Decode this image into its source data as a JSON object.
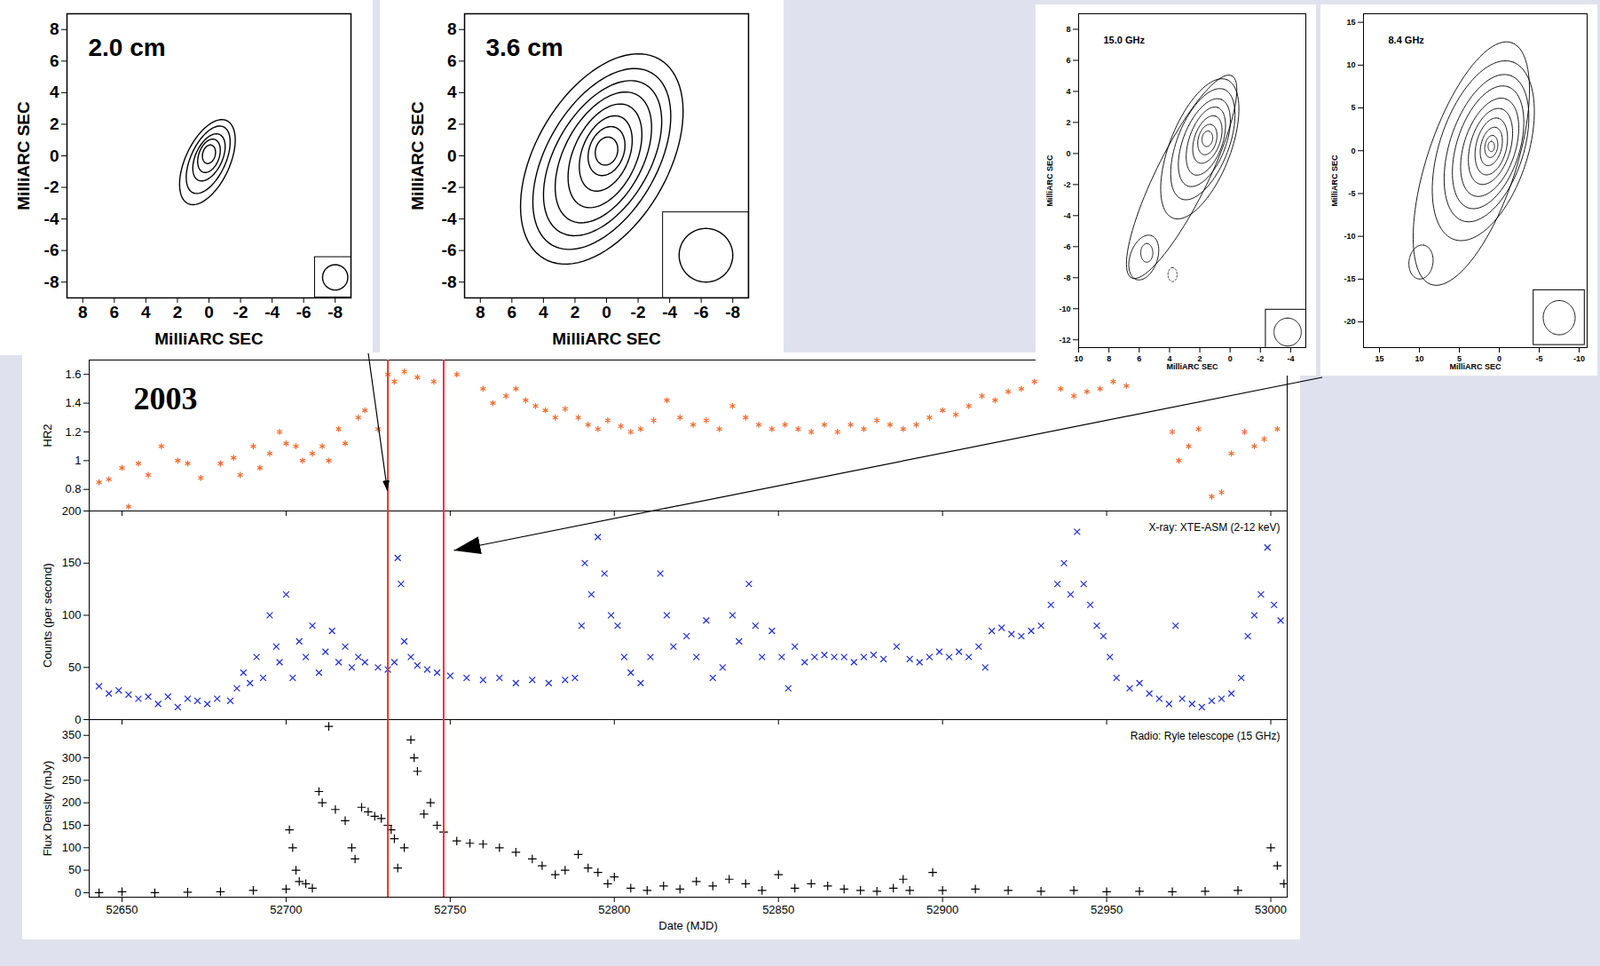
{
  "chart_data": [
    {
      "type": "contour",
      "title": "2.0 cm",
      "xlabel": "MilliARC SEC",
      "ylabel": "MilliARC SEC",
      "color": "#000000",
      "xlim": [
        9,
        -9
      ],
      "ylim": [
        -9,
        9
      ],
      "xticks": [
        8,
        6,
        4,
        2,
        0,
        -2,
        -4,
        -6,
        -8
      ],
      "yticks": [
        -8,
        -6,
        -4,
        -2,
        0,
        2,
        4,
        6,
        8
      ],
      "contours": [
        {
          "cx": 0.1,
          "cy": -0.4,
          "a": 2.9,
          "b": 1.4,
          "pa": -25
        },
        {
          "cx": 0.05,
          "cy": -0.25,
          "a": 2.3,
          "b": 1.1,
          "pa": -25
        },
        {
          "cx": 0,
          "cy": -0.1,
          "a": 1.6,
          "b": 0.85,
          "pa": -25
        },
        {
          "cx": 0,
          "cy": 0,
          "a": 1.1,
          "b": 0.65,
          "pa": -20
        },
        {
          "cx": 0,
          "cy": 0.1,
          "a": 0.6,
          "b": 0.4,
          "pa": -15
        }
      ],
      "beam": {
        "x": -8,
        "y": -7.7,
        "r": 0.8
      }
    },
    {
      "type": "contour",
      "title": "3.6 cm",
      "xlabel": "MilliARC SEC",
      "ylabel": "MilliARC SEC",
      "color": "#000000",
      "xlim": [
        9,
        -9
      ],
      "ylim": [
        -9,
        9
      ],
      "xticks": [
        8,
        6,
        4,
        2,
        0,
        -2,
        -4,
        -6,
        -8
      ],
      "yticks": [
        -8,
        -6,
        -4,
        -2,
        0,
        2,
        4,
        6,
        8
      ],
      "contours": [
        {
          "cx": 0.3,
          "cy": -0.2,
          "a": 7.3,
          "b": 4.2,
          "pa": -30
        },
        {
          "cx": 0.3,
          "cy": -0.2,
          "a": 6.3,
          "b": 3.5,
          "pa": -30
        },
        {
          "cx": 0.25,
          "cy": -0.15,
          "a": 5.4,
          "b": 3.0,
          "pa": -30
        },
        {
          "cx": 0.2,
          "cy": -0.1,
          "a": 4.5,
          "b": 2.5,
          "pa": -28
        },
        {
          "cx": 0.1,
          "cy": 0,
          "a": 3.5,
          "b": 2.0,
          "pa": -25
        },
        {
          "cx": 0.05,
          "cy": 0.15,
          "a": 2.5,
          "b": 1.5,
          "pa": -22
        },
        {
          "cx": 0,
          "cy": 0.3,
          "a": 1.6,
          "b": 1.1,
          "pa": -20
        },
        {
          "cx": 0,
          "cy": 0.3,
          "a": 0.9,
          "b": 0.7,
          "pa": -15
        }
      ],
      "beam": {
        "x": -6.3,
        "y": -6.3,
        "r": 1.7
      }
    },
    {
      "type": "contour",
      "title": "15.0 GHz",
      "xlabel": "MilliARC SEC",
      "ylabel": "MilliARC SEC",
      "color": "#000000",
      "xlim": [
        10,
        -5
      ],
      "ylim": [
        -12.5,
        9
      ],
      "xticks": [
        10,
        8,
        6,
        4,
        2,
        0,
        -2,
        -4
      ],
      "yticks": [
        -12,
        -10,
        -8,
        -6,
        -4,
        -2,
        0,
        2,
        4,
        6,
        8
      ],
      "contours": [
        {
          "cx": 3.2,
          "cy": -1.5,
          "a": 7.3,
          "b": 1.7,
          "pa": -27
        },
        {
          "cx": 2.0,
          "cy": 0.3,
          "a": 4.8,
          "b": 2.0,
          "pa": -22
        },
        {
          "cx": 1.8,
          "cy": 0.6,
          "a": 3.8,
          "b": 1.7,
          "pa": -22
        },
        {
          "cx": 1.7,
          "cy": 0.7,
          "a": 3.0,
          "b": 1.4,
          "pa": -22
        },
        {
          "cx": 1.6,
          "cy": 0.8,
          "a": 2.3,
          "b": 1.1,
          "pa": -20
        },
        {
          "cx": 1.5,
          "cy": 0.9,
          "a": 1.6,
          "b": 0.85,
          "pa": -20
        },
        {
          "cx": 1.5,
          "cy": 0.9,
          "a": 1.0,
          "b": 0.6,
          "pa": -15
        },
        {
          "cx": 1.5,
          "cy": 0.95,
          "a": 0.5,
          "b": 0.35,
          "pa": -10
        },
        {
          "cx": 5.7,
          "cy": -6.7,
          "a": 1.5,
          "b": 0.9,
          "pa": -20
        },
        {
          "cx": 5.5,
          "cy": -6.4,
          "a": 0.6,
          "b": 0.4,
          "pa": 0
        },
        {
          "cx": 3.8,
          "cy": -7.8,
          "a": 0.45,
          "b": 0.3,
          "pa": 0,
          "line_style": "dashed"
        }
      ],
      "beam": {
        "x": -3.8,
        "y": -11.5,
        "r": 0.9
      }
    },
    {
      "type": "contour",
      "title": "8.4 GHz",
      "xlabel": "MilliARC SEC",
      "ylabel": "MilliARC SEC",
      "color": "#000000",
      "xlim": [
        17,
        -11
      ],
      "ylim": [
        -23,
        16
      ],
      "xticks": [
        15,
        10,
        5,
        0,
        -5,
        -10
      ],
      "yticks": [
        -20,
        -15,
        -10,
        -5,
        0,
        5,
        10,
        15
      ],
      "contours": [
        {
          "cx": 3.5,
          "cy": -1.5,
          "a": 15,
          "b": 5.5,
          "pa": -20
        },
        {
          "cx": 2,
          "cy": 0,
          "a": 11,
          "b": 5.5,
          "pa": -20
        },
        {
          "cx": 1.6,
          "cy": 0.3,
          "a": 9,
          "b": 4.6,
          "pa": -20
        },
        {
          "cx": 1.4,
          "cy": 0.4,
          "a": 7.5,
          "b": 3.9,
          "pa": -20
        },
        {
          "cx": 1.2,
          "cy": 0.4,
          "a": 6,
          "b": 3.2,
          "pa": -20
        },
        {
          "cx": 1.1,
          "cy": 0.5,
          "a": 4.6,
          "b": 2.5,
          "pa": -18
        },
        {
          "cx": 1,
          "cy": 0.5,
          "a": 3.4,
          "b": 1.9,
          "pa": -15
        },
        {
          "cx": 1,
          "cy": 0.5,
          "a": 2.3,
          "b": 1.3,
          "pa": -15
        },
        {
          "cx": 1,
          "cy": 0.5,
          "a": 1.3,
          "b": 0.8,
          "pa": -10
        },
        {
          "cx": 1,
          "cy": 0.5,
          "a": 0.6,
          "b": 0.4,
          "pa": 0
        },
        {
          "cx": 9.8,
          "cy": -13,
          "a": 2,
          "b": 1.5,
          "pa": -10
        }
      ],
      "beam": {
        "x": -7.5,
        "y": -19.5,
        "r": 2
      }
    },
    {
      "type": "scatter",
      "ylabel": "HR2",
      "tick_labels": "y",
      "annotations": [
        "2003"
      ],
      "xlim": [
        52640,
        53005
      ],
      "xticks": [
        52650,
        52700,
        52750,
        52800,
        52850,
        52900,
        52950,
        53000
      ],
      "ylim": [
        0.65,
        1.7
      ],
      "yticks": [
        0.8,
        1,
        1.2,
        1.4,
        1.6
      ],
      "vlines": {
        "values": [
          52731,
          52748
        ],
        "color": "#e8352b"
      },
      "x": [
        52643,
        52646,
        52650,
        52652,
        52655,
        52658,
        52662,
        52667,
        52670,
        52674,
        52680,
        52684,
        52686,
        52690,
        52692,
        52695,
        52698,
        52700,
        52703,
        52705,
        52708,
        52711,
        52713,
        52716,
        52718,
        52722,
        52724,
        52728,
        52731,
        52733,
        52736,
        52740,
        52745,
        52752,
        52760,
        52763,
        52767,
        52770,
        52773,
        52776,
        52779,
        52782,
        52785,
        52789,
        52792,
        52795,
        52798,
        52802,
        52805,
        52808,
        52812,
        52816,
        52820,
        52824,
        52828,
        52832,
        52836,
        52840,
        52844,
        52848,
        52852,
        52856,
        52860,
        52864,
        52868,
        52872,
        52876,
        52880,
        52884,
        52888,
        52892,
        52896,
        52900,
        52904,
        52908,
        52912,
        52916,
        52920,
        52924,
        52928,
        52932,
        52936,
        52940,
        52944,
        52948,
        52952,
        52956,
        52970,
        52972,
        52975,
        52978,
        52982,
        52985,
        52988,
        52992,
        52995,
        52998,
        53002
      ],
      "series": [
        {
          "color": "#f26a2e",
          "marker": "asterisk",
          "values": [
            0.85,
            0.87,
            0.95,
            0.68,
            0.98,
            0.9,
            1.1,
            1,
            0.98,
            0.88,
            0.98,
            1.02,
            0.9,
            1.1,
            0.95,
            1.05,
            1.2,
            1.12,
            1.1,
            1,
            1.05,
            1.1,
            1,
            1.22,
            1.12,
            1.3,
            1.35,
            1.22,
            1.6,
            1.55,
            1.62,
            1.58,
            1.55,
            1.6,
            1.5,
            1.4,
            1.45,
            1.5,
            1.42,
            1.38,
            1.35,
            1.3,
            1.36,
            1.3,
            1.25,
            1.22,
            1.28,
            1.24,
            1.2,
            1.22,
            1.28,
            1.42,
            1.3,
            1.25,
            1.28,
            1.22,
            1.38,
            1.3,
            1.25,
            1.22,
            1.25,
            1.22,
            1.2,
            1.25,
            1.2,
            1.25,
            1.22,
            1.28,
            1.25,
            1.22,
            1.25,
            1.3,
            1.35,
            1.32,
            1.38,
            1.45,
            1.42,
            1.48,
            1.5,
            1.55,
            1.62,
            1.5,
            1.45,
            1.48,
            1.5,
            1.55,
            1.52,
            1.2,
            1,
            1.1,
            1.22,
            0.75,
            0.78,
            1.05,
            1.2,
            1.1,
            1.15,
            1.22
          ]
        }
      ]
    },
    {
      "type": "scatter",
      "ylabel": "Counts (per second)",
      "tick_labels": "y",
      "xlim": [
        52640,
        53005
      ],
      "xticks": [
        52650,
        52700,
        52750,
        52800,
        52850,
        52900,
        52950,
        53000
      ],
      "ylim": [
        0,
        200
      ],
      "yticks": [
        0,
        50,
        100,
        150,
        200
      ],
      "vlines": {
        "values": [
          52731,
          52748
        ],
        "color": "#e8352b"
      },
      "x": [
        52643,
        52646,
        52649,
        52652,
        52655,
        52658,
        52661,
        52664,
        52667,
        52670,
        52673,
        52676,
        52679,
        52683,
        52685,
        52687,
        52689,
        52691,
        52693,
        52695,
        52697,
        52698,
        52700,
        52702,
        52704,
        52706,
        52708,
        52710,
        52712,
        52714,
        52716,
        52718,
        52720,
        52722,
        52724,
        52728,
        52731,
        52733,
        52734,
        52735,
        52736,
        52738,
        52740,
        52743,
        52746,
        52750,
        52755,
        52760,
        52765,
        52770,
        52775,
        52780,
        52785,
        52788,
        52790,
        52791,
        52793,
        52795,
        52797,
        52799,
        52801,
        52803,
        52805,
        52808,
        52811,
        52814,
        52816,
        52818,
        52822,
        52825,
        52828,
        52830,
        52833,
        52836,
        52838,
        52841,
        52843,
        52845,
        52848,
        52851,
        52853,
        52855,
        52858,
        52861,
        52864,
        52867,
        52870,
        52873,
        52876,
        52879,
        52882,
        52886,
        52890,
        52893,
        52896,
        52899,
        52902,
        52905,
        52908,
        52911,
        52913,
        52915,
        52918,
        52921,
        52924,
        52927,
        52930,
        52933,
        52935,
        52937,
        52939,
        52941,
        52943,
        52945,
        52947,
        52949,
        52951,
        52953,
        52957,
        52960,
        52963,
        52966,
        52969,
        52971,
        52973,
        52976,
        52979,
        52982,
        52985,
        52988,
        52991,
        52993,
        52995,
        52997,
        52999,
        53001,
        53003
      ],
      "series": [
        {
          "name": "X-ray: XTE-ASM (2-12 keV)",
          "color": "#1f2fd6",
          "marker": "times",
          "values": [
            32,
            25,
            28,
            24,
            20,
            22,
            15,
            22,
            12,
            20,
            18,
            15,
            20,
            18,
            30,
            45,
            35,
            60,
            40,
            100,
            70,
            55,
            120,
            40,
            75,
            60,
            90,
            45,
            65,
            85,
            55,
            70,
            50,
            60,
            55,
            50,
            48,
            55,
            155,
            130,
            75,
            60,
            52,
            48,
            45,
            42,
            40,
            38,
            40,
            35,
            38,
            35,
            38,
            40,
            90,
            150,
            120,
            175,
            140,
            100,
            90,
            60,
            45,
            35,
            60,
            140,
            100,
            70,
            80,
            60,
            95,
            40,
            50,
            100,
            75,
            130,
            90,
            60,
            85,
            60,
            30,
            70,
            55,
            60,
            62,
            60,
            60,
            55,
            60,
            62,
            58,
            70,
            58,
            55,
            60,
            65,
            60,
            65,
            60,
            70,
            50,
            85,
            88,
            82,
            80,
            85,
            90,
            110,
            130,
            150,
            120,
            180,
            130,
            110,
            90,
            80,
            60,
            40,
            30,
            35,
            25,
            20,
            15,
            90,
            20,
            15,
            12,
            18,
            20,
            25,
            40,
            80,
            100,
            120,
            165,
            110,
            95
          ]
        }
      ]
    },
    {
      "type": "scatter",
      "xlabel": "Date (MJD)",
      "ylabel": "Flux Density (mJy)",
      "xlim": [
        52640,
        53005
      ],
      "xticks": [
        52650,
        52700,
        52750,
        52800,
        52850,
        52900,
        52950,
        53000
      ],
      "ylim": [
        -10,
        385
      ],
      "yticks": [
        0,
        50,
        100,
        150,
        200,
        250,
        300,
        350
      ],
      "vlines": {
        "values": [
          52731,
          52748
        ],
        "color": "#e8352b"
      },
      "x": [
        52643,
        52650,
        52660,
        52670,
        52680,
        52690,
        52700,
        52701,
        52702,
        52703,
        52704,
        52706,
        52708,
        52710,
        52711,
        52713,
        52715,
        52718,
        52720,
        52721,
        52723,
        52725,
        52727,
        52729,
        52731,
        52732,
        52733,
        52734,
        52736,
        52738,
        52739,
        52740,
        52742,
        52744,
        52746,
        52748,
        52752,
        52756,
        52760,
        52765,
        52770,
        52775,
        52778,
        52782,
        52785,
        52789,
        52792,
        52795,
        52798,
        52800,
        52805,
        52810,
        52815,
        52820,
        52825,
        52830,
        52835,
        52840,
        52845,
        52850,
        52855,
        52860,
        52865,
        52870,
        52875,
        52880,
        52885,
        52888,
        52890,
        52897,
        52900,
        52910,
        52920,
        52930,
        52940,
        52950,
        52960,
        52970,
        52980,
        52990,
        53000,
        53002,
        53004
      ],
      "series": [
        {
          "name": "Radio: Ryle telescope (15 GHz)",
          "color": "#000000",
          "marker": "plus",
          "values": [
            0,
            2,
            0,
            1,
            2,
            5,
            8,
            140,
            100,
            50,
            25,
            20,
            10,
            225,
            200,
            370,
            185,
            160,
            100,
            75,
            190,
            180,
            170,
            165,
            150,
            140,
            120,
            55,
            100,
            340,
            300,
            270,
            175,
            200,
            150,
            135,
            115,
            110,
            108,
            100,
            90,
            75,
            60,
            40,
            50,
            85,
            55,
            45,
            20,
            35,
            10,
            5,
            15,
            8,
            25,
            15,
            30,
            20,
            5,
            40,
            10,
            20,
            15,
            8,
            5,
            3,
            10,
            30,
            5,
            45,
            5,
            8,
            5,
            3,
            5,
            2,
            3,
            2,
            3,
            5,
            100,
            60,
            20
          ]
        }
      ]
    }
  ]
}
